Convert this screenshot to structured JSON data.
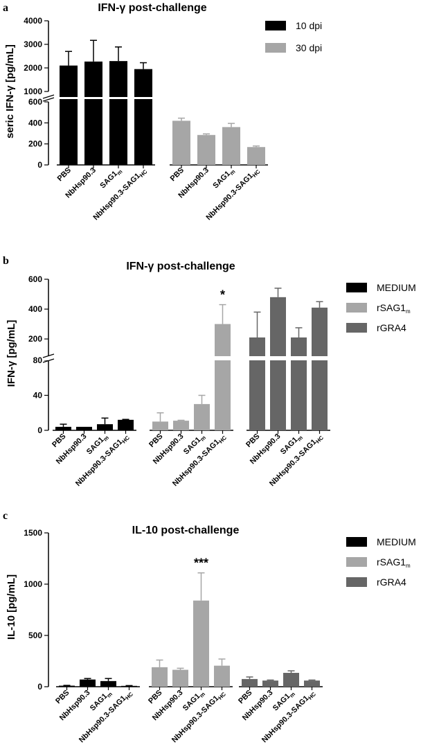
{
  "chart_data": [
    {
      "panel": "a",
      "type": "bar",
      "title": "IFN-γ post-challenge",
      "ylabel": "seric IFN-γ  [pg/mL]",
      "ylim_lower": [
        0,
        600
      ],
      "ylim_upper": [
        1000,
        4000
      ],
      "yticks_lower": [
        "0",
        "200",
        "400",
        "600"
      ],
      "yticks_upper": [
        "1000",
        "2000",
        "3000",
        "4000"
      ],
      "legend": [
        "10 dpi",
        "30 dpi"
      ],
      "colors": [
        "#000000",
        "#a6a6a6"
      ],
      "groups": [
        {
          "name": "10 dpi",
          "color": "#000000",
          "categories": [
            "PBS",
            "NbHsp90.3",
            "SAG1",
            "NbHsp90.3-SAG1"
          ],
          "subscripts": [
            "",
            "",
            "m",
            "HC"
          ],
          "values": [
            2100,
            2270,
            2290,
            1950
          ],
          "errors": [
            600,
            900,
            600,
            270
          ],
          "annotations": [
            "",
            "",
            "",
            ""
          ]
        },
        {
          "name": "30 dpi",
          "color": "#a6a6a6",
          "categories": [
            "PBS",
            "NbHsp90.3",
            "SAG1",
            "NbHsp90.3-SAG1"
          ],
          "subscripts": [
            "",
            "",
            "m",
            "HC"
          ],
          "values": [
            420,
            285,
            360,
            170
          ],
          "errors": [
            25,
            10,
            35,
            10
          ],
          "annotations": [
            "",
            "",
            "",
            ""
          ]
        }
      ]
    },
    {
      "panel": "b",
      "type": "bar",
      "title": "IFN-γ post-challenge",
      "ylabel": "IFN-γ [pg/mL]",
      "ylim_lower": [
        0,
        80
      ],
      "ylim_upper": [
        80,
        600
      ],
      "yticks_lower": [
        "0",
        "40",
        "80"
      ],
      "yticks_upper": [
        "200",
        "400",
        "600"
      ],
      "legend": [
        "MEDIUM",
        "rSAG1",
        "rGRA4"
      ],
      "legend_subscripts": [
        "",
        "m",
        ""
      ],
      "colors": [
        "#000000",
        "#a6a6a6",
        "#666666"
      ],
      "groups": [
        {
          "name": "MEDIUM",
          "color": "#000000",
          "categories": [
            "PBS",
            "NbHsp90.3",
            "SAG1",
            "NbHsp90.3-SAG1"
          ],
          "subscripts": [
            "",
            "",
            "m",
            "HC"
          ],
          "values": [
            4,
            4,
            7,
            12
          ],
          "errors": [
            3,
            0,
            7,
            0.5
          ],
          "annotations": [
            "",
            "",
            "",
            ""
          ]
        },
        {
          "name": "rSAG1m",
          "color": "#a6a6a6",
          "categories": [
            "PBS",
            "NbHsp90.3",
            "SAG1",
            "NbHsp90.3-SAG1"
          ],
          "subscripts": [
            "",
            "",
            "m",
            "HC"
          ],
          "values": [
            10,
            11,
            30,
            300
          ],
          "errors": [
            10,
            0.5,
            10,
            130
          ],
          "annotations": [
            "",
            "",
            "",
            "*"
          ]
        },
        {
          "name": "rGRA4",
          "color": "#666666",
          "categories": [
            "PBS",
            "NbHsp90.3",
            "SAG1",
            "NbHsp90.3-SAG1"
          ],
          "subscripts": [
            "",
            "",
            "m",
            "HC"
          ],
          "values": [
            210,
            480,
            210,
            410
          ],
          "errors": [
            170,
            60,
            65,
            40
          ],
          "annotations": [
            "",
            "",
            "",
            ""
          ]
        }
      ]
    },
    {
      "panel": "c",
      "type": "bar",
      "title": "IL-10 post-challenge",
      "ylabel": "IL-10 [pg/mL]",
      "ylim": [
        0,
        1500
      ],
      "yticks": [
        "0",
        "500",
        "1000",
        "1500"
      ],
      "legend": [
        "MEDIUM",
        "rSAG1",
        "rGRA4"
      ],
      "legend_subscripts": [
        "",
        "m",
        ""
      ],
      "colors": [
        "#000000",
        "#a6a6a6",
        "#666666"
      ],
      "groups": [
        {
          "name": "MEDIUM",
          "color": "#000000",
          "categories": [
            "PBS",
            "NbHsp90.3",
            "SAG1",
            "NbHsp90.3-SAG1"
          ],
          "subscripts": [
            "",
            "",
            "m",
            "HC"
          ],
          "values": [
            10,
            70,
            55,
            8
          ],
          "errors": [
            3,
            10,
            25,
            3
          ],
          "annotations": [
            "",
            "",
            "",
            ""
          ]
        },
        {
          "name": "rSAG1m",
          "color": "#a6a6a6",
          "categories": [
            "PBS",
            "NbHsp90.3",
            "SAG1",
            "NbHsp90.3-SAG1"
          ],
          "subscripts": [
            "",
            "",
            "m",
            "HC"
          ],
          "values": [
            190,
            165,
            840,
            205
          ],
          "errors": [
            70,
            15,
            270,
            65
          ],
          "annotations": [
            "",
            "",
            "***",
            ""
          ]
        },
        {
          "name": "rGRA4",
          "color": "#666666",
          "categories": [
            "PBS",
            "NbHsp90.3",
            "SAG1",
            "NbHsp90.3-SAG1"
          ],
          "subscripts": [
            "",
            "",
            "m",
            "HC"
          ],
          "values": [
            75,
            60,
            135,
            60
          ],
          "errors": [
            20,
            5,
            20,
            5
          ],
          "annotations": [
            "",
            "",
            "",
            ""
          ]
        }
      ]
    }
  ]
}
